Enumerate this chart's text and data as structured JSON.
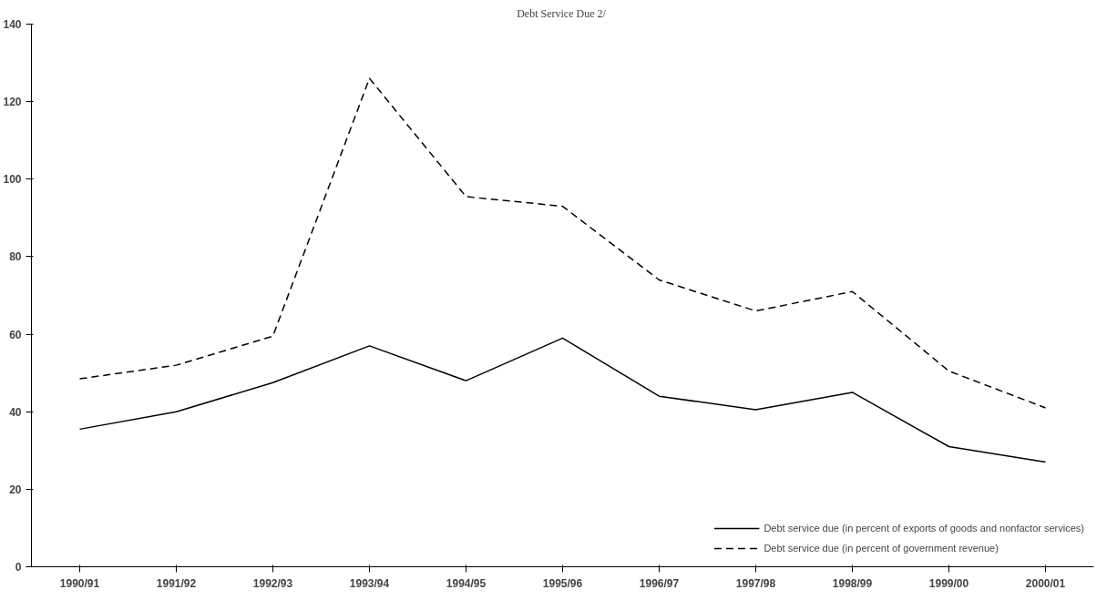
{
  "chart_data": {
    "type": "line",
    "title": "Debt Service Due  2/",
    "categories": [
      "1990/91",
      "1991/92",
      "1992/93",
      "1993/94",
      "1994/95",
      "1995/96",
      "1996/97",
      "1997/98",
      "1998/99",
      "1999/00",
      "2000/01"
    ],
    "series": [
      {
        "name": "Debt service due (in percent of exports of goods and nonfactor services)",
        "color": "#000000",
        "line_style": "solid",
        "values": [
          35.5,
          40,
          47.5,
          57,
          48,
          59,
          44,
          40.5,
          45,
          31,
          27
        ]
      },
      {
        "name": "Debt service due (in percent of government revenue)",
        "color": "#000000",
        "line_style": "dashed",
        "values": [
          48.5,
          52,
          59.5,
          126,
          95.5,
          93,
          74,
          66,
          71,
          50.5,
          41
        ]
      }
    ],
    "ylim": [
      0,
      140
    ],
    "yticks": [
      0,
      20,
      40,
      60,
      80,
      100,
      120,
      140
    ],
    "grid": false,
    "legend": "bottom right",
    "marker": "none"
  }
}
